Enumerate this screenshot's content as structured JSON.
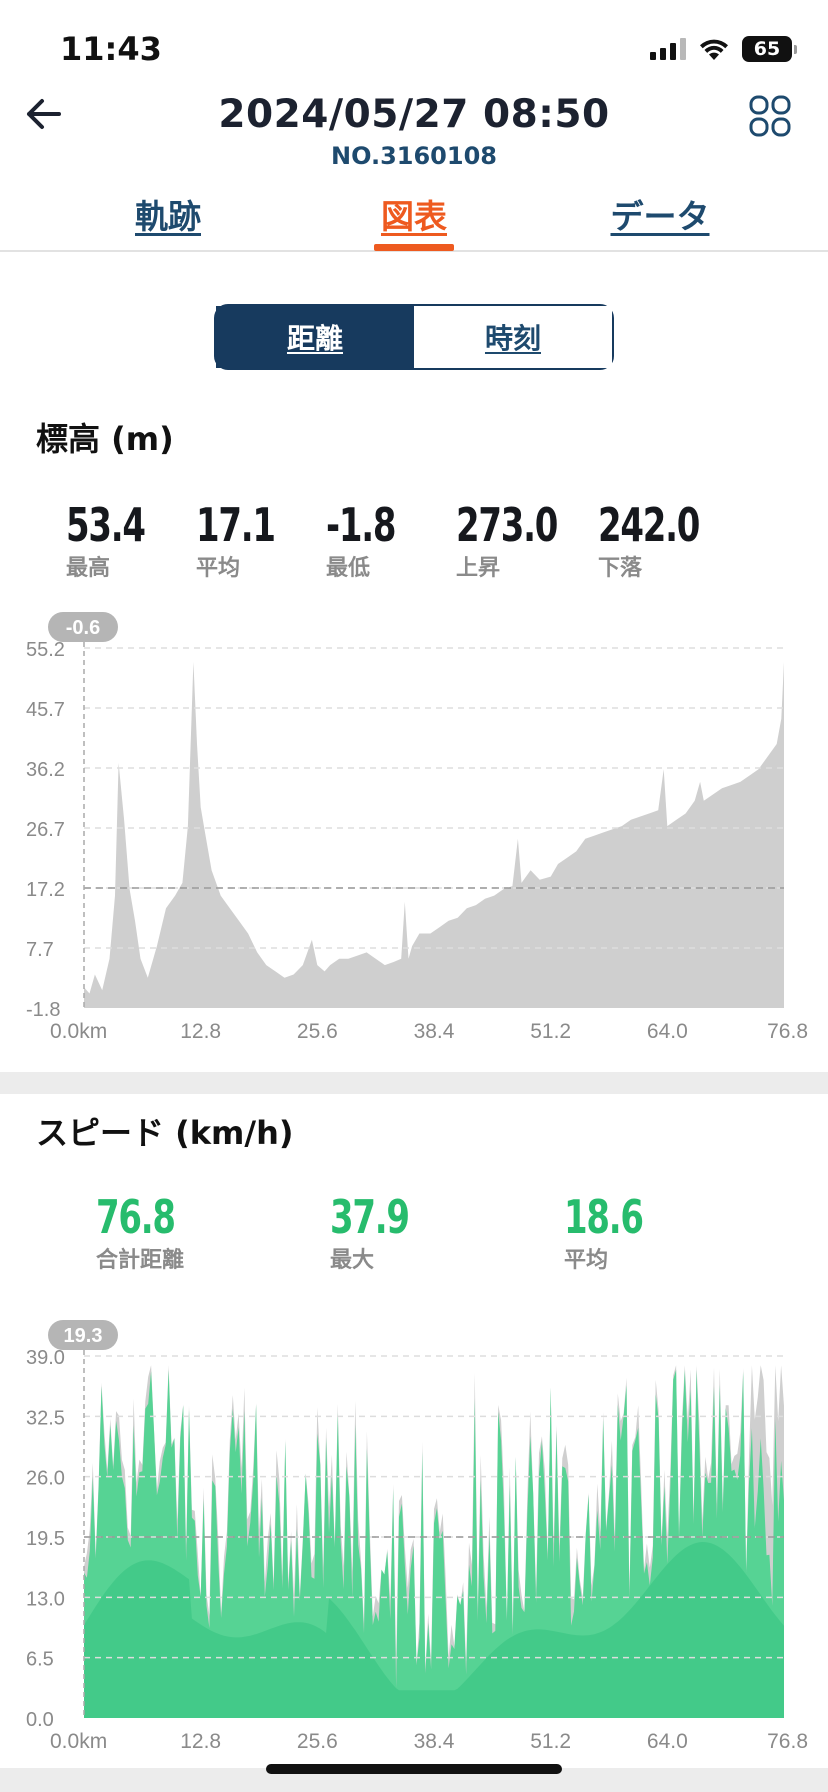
{
  "status": {
    "time": "11:43",
    "battery": "65"
  },
  "header": {
    "title": "2024/05/27 08:50",
    "subtitle": "NO.3160108"
  },
  "tabs": [
    {
      "label": "軌跡",
      "active": false
    },
    {
      "label": "図表",
      "active": true
    },
    {
      "label": "データ",
      "active": false
    }
  ],
  "segment": {
    "options": [
      "距離",
      "時刻"
    ],
    "selected": "距離"
  },
  "colors": {
    "accent": "#ee5a1f",
    "navy": "#173a5e",
    "green": "#27bc6d",
    "elevation_fill": "#cfcfcf",
    "speed_fill": "#3ec785"
  },
  "elevation": {
    "title": "標高 (m)",
    "stats": [
      {
        "value": "53.4",
        "label": "最高"
      },
      {
        "value": "17.1",
        "label": "平均"
      },
      {
        "value": "-1.8",
        "label": "最低"
      },
      {
        "value": "273.0",
        "label": "上昇"
      },
      {
        "value": "242.0",
        "label": "下落"
      }
    ]
  },
  "speed": {
    "title": "スピード (km/h)",
    "stats": [
      {
        "value": "76.8",
        "label": "合計距離"
      },
      {
        "value": "37.9",
        "label": "最大"
      },
      {
        "value": "18.6",
        "label": "平均"
      }
    ]
  },
  "chart_data": [
    {
      "type": "area",
      "badge": "-0.6",
      "x_ticks": [
        "0.0km",
        "12.8",
        "25.6",
        "38.4",
        "51.2",
        "64.0",
        "76.8"
      ],
      "y_ticks": [
        "55.2",
        "45.7",
        "36.2",
        "26.7",
        "17.2",
        "7.7",
        "-1.8"
      ],
      "xlim": [
        0,
        76.8
      ],
      "ylim": [
        -1.8,
        55.2
      ],
      "average_line": 17.2,
      "grid": true,
      "x": [
        0,
        0.6,
        1.2,
        2,
        2.8,
        3.4,
        3.8,
        4.4,
        5,
        5.6,
        6.2,
        7,
        8,
        9,
        10,
        10.8,
        11.4,
        12,
        12.4,
        12.8,
        13.4,
        14,
        15,
        16,
        17,
        18,
        19,
        20,
        21,
        22,
        23,
        24,
        25,
        25.6,
        26.4,
        27,
        28,
        29,
        30,
        31,
        32,
        33,
        34,
        34.8,
        35.2,
        35.6,
        36,
        36.8,
        38,
        39,
        40,
        41,
        42,
        43,
        44,
        45,
        46,
        47,
        47.6,
        48,
        49,
        50,
        51.2,
        52,
        53,
        54,
        55,
        56,
        57,
        58,
        59,
        60,
        61,
        62,
        63,
        63.6,
        64,
        65,
        66,
        67,
        67.6,
        68,
        69,
        70,
        71,
        72,
        73,
        74,
        75,
        76,
        76.5,
        76.8
      ],
      "series": [
        {
          "values": [
            1.5,
            0.5,
            3.5,
            1.0,
            6.0,
            16.0,
            37.0,
            28.0,
            17.0,
            12.0,
            6.0,
            3.0,
            8.0,
            14.0,
            16.0,
            18.0,
            27.0,
            53.0,
            40.0,
            30.0,
            25.0,
            20.0,
            16.0,
            14.0,
            12.0,
            10.0,
            7.0,
            5.0,
            4.0,
            3.0,
            3.5,
            5.0,
            9.0,
            5.0,
            4.0,
            5.0,
            6.0,
            6.0,
            6.5,
            7.0,
            6.0,
            5.0,
            5.5,
            6.0,
            15.0,
            6.0,
            8.0,
            10.0,
            10.0,
            11.0,
            12.0,
            12.5,
            14.0,
            14.5,
            15.5,
            16.0,
            17.0,
            17.5,
            25.0,
            18.0,
            20.0,
            18.5,
            19.0,
            21.0,
            22.0,
            23.0,
            25.0,
            25.5,
            26.0,
            26.5,
            27.0,
            28.0,
            28.5,
            29.0,
            29.5,
            36.0,
            27.0,
            28.0,
            29.0,
            31.0,
            34.0,
            31.0,
            32.0,
            33.0,
            33.5,
            34.0,
            35.0,
            36.0,
            38.0,
            40.0,
            44.0,
            53.0
          ]
        }
      ]
    },
    {
      "type": "area",
      "badge": "19.3",
      "x_ticks": [
        "0.0km",
        "12.8",
        "25.6",
        "38.4",
        "51.2",
        "64.0",
        "76.8"
      ],
      "y_ticks": [
        "39.0",
        "32.5",
        "26.0",
        "19.5",
        "13.0",
        "6.5",
        "0.0"
      ],
      "xlim": [
        0,
        76.8
      ],
      "ylim": [
        0,
        39
      ],
      "average_line": 19.5,
      "grid": true
    }
  ]
}
